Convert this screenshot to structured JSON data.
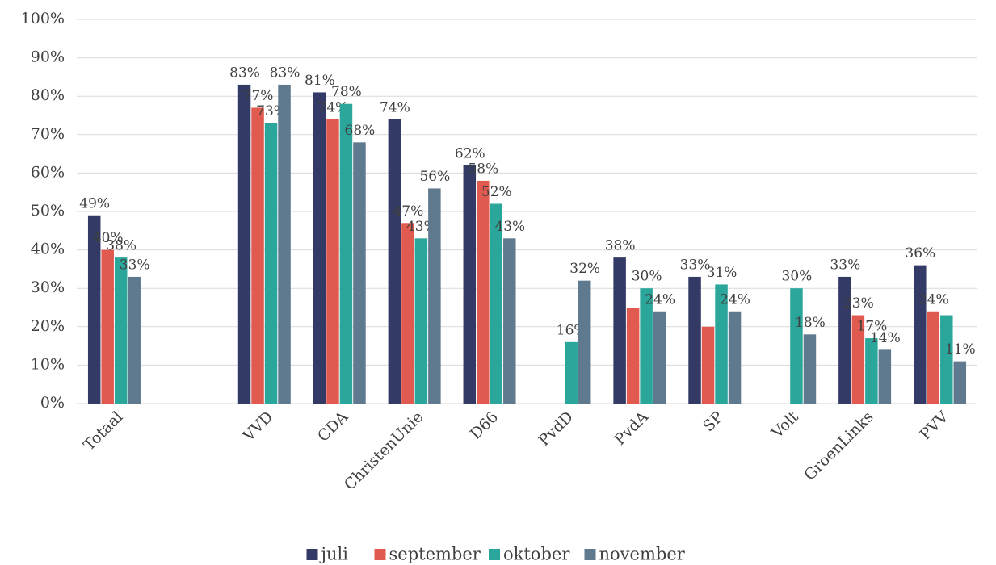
{
  "chart_data": {
    "type": "bar",
    "categories": [
      "Totaal",
      null,
      "VVD",
      "CDA",
      "ChristenUnie",
      "D66",
      "PvdD",
      "PvdA",
      "SP",
      "Volt",
      "GroenLinks",
      "PVV"
    ],
    "series": [
      {
        "name": "juli",
        "color": "#333a66",
        "values": [
          49,
          null,
          83,
          81,
          74,
          62,
          null,
          38,
          33,
          null,
          33,
          36
        ],
        "value_labels": [
          "49%",
          null,
          "83%",
          "81%",
          "74%",
          "62%",
          null,
          "38%",
          "33%",
          null,
          "33%",
          "36%"
        ]
      },
      {
        "name": "september",
        "color": "#e05a4f",
        "values": [
          40,
          null,
          77,
          74,
          47,
          58,
          null,
          25,
          20,
          null,
          23,
          24
        ],
        "value_labels": [
          "40%",
          null,
          "77%",
          "74%",
          "47%",
          "58%",
          null,
          null,
          null,
          null,
          "23%",
          "24%"
        ]
      },
      {
        "name": "oktober",
        "color": "#2aa69a",
        "values": [
          38,
          null,
          73,
          78,
          43,
          52,
          16,
          30,
          31,
          30,
          17,
          23
        ],
        "value_labels": [
          "38%",
          null,
          "73%",
          "78%",
          "43%",
          "52%",
          "16%",
          "30%",
          "31%",
          "30%",
          "17%",
          null
        ]
      },
      {
        "name": "november",
        "color": "#5f7a8f",
        "values": [
          33,
          null,
          83,
          68,
          56,
          43,
          32,
          24,
          24,
          18,
          14,
          11
        ],
        "value_labels": [
          "33%",
          null,
          "83%",
          "68%",
          "56%",
          "43%",
          "32%",
          "24%",
          "24%",
          "18%",
          "14%",
          "11%"
        ]
      }
    ],
    "ylim": [
      0,
      100
    ],
    "yticks": [
      {
        "value": 0,
        "label": "0%"
      },
      {
        "value": 10,
        "label": "10%"
      },
      {
        "value": 20,
        "label": "20%"
      },
      {
        "value": 30,
        "label": "30%"
      },
      {
        "value": 40,
        "label": "40%"
      },
      {
        "value": 50,
        "label": "50%"
      },
      {
        "value": 60,
        "label": "60%"
      },
      {
        "value": 70,
        "label": "70%"
      },
      {
        "value": 80,
        "label": "80%"
      },
      {
        "value": 90,
        "label": "90%"
      },
      {
        "value": 100,
        "label": "100%"
      }
    ],
    "grid": true,
    "legend": "bottom"
  }
}
